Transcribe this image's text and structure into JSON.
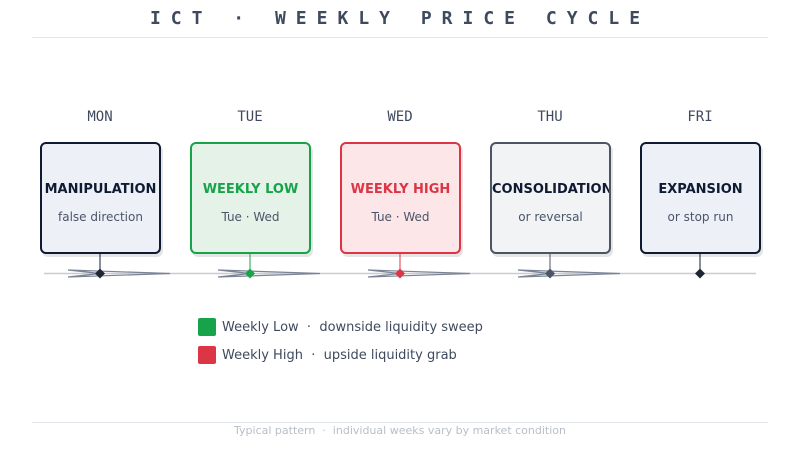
{
  "title": "ICT · WEEKLY PRICE CYCLE",
  "colors": {
    "ink": "#0f1b33",
    "slate": "#4a5568",
    "green": "#16a34a",
    "red": "#dc3545",
    "neutral_border": "#4b5563",
    "timeline": "#c9ccd1"
  },
  "days": [
    {
      "label": "MON",
      "name": "MANIPULATION",
      "sub": "false direction",
      "border": "#0f1b33",
      "bg": "#edf0f7",
      "text": "#0f1b33",
      "marker": "#1e2636"
    },
    {
      "label": "TUE",
      "name": "WEEKLY LOW",
      "sub": "Tue · Wed",
      "border": "#16a34a",
      "bg": "#e4f2e8",
      "text": "#16a34a",
      "marker": "#16a34a"
    },
    {
      "label": "WED",
      "name": "WEEKLY HIGH",
      "sub": "Tue · Wed",
      "border": "#dc3545",
      "bg": "#fce6e8",
      "text": "#dc3545",
      "marker": "#dc3545"
    },
    {
      "label": "THU",
      "name": "CONSOLIDATION",
      "sub": "or reversal",
      "border": "#4b5563",
      "bg": "#f2f3f5",
      "text": "#0f1b33",
      "marker": "#4b5563"
    },
    {
      "label": "FRI",
      "name": "EXPANSION",
      "sub": "or stop run",
      "border": "#0f1b33",
      "bg": "#edf0f7",
      "text": "#0f1b33",
      "marker": "#1e2636"
    }
  ],
  "legend": [
    {
      "color": "#16a34a",
      "text": "Weekly Low  ·  downside liquidity sweep"
    },
    {
      "color": "#dc3545",
      "text": "Weekly High  ·  upside liquidity grab"
    }
  ],
  "footnote": "Typical pattern  ·  individual weeks vary by market condition"
}
